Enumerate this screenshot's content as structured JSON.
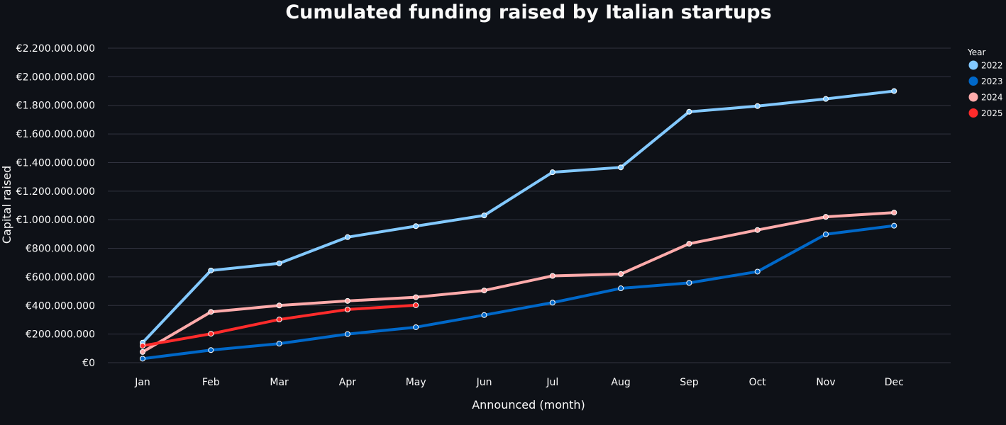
{
  "chart_data": {
    "type": "line",
    "title": "Cumulated funding raised by Italian startups",
    "xlabel": "Announced (month)",
    "ylabel": "Capital raised",
    "categories": [
      "Jan",
      "Feb",
      "Mar",
      "Apr",
      "May",
      "Jun",
      "Jul",
      "Aug",
      "Sep",
      "Oct",
      "Nov",
      "Dec"
    ],
    "ylim": [
      0,
      2200000000
    ],
    "yticks": [
      0,
      200000000,
      400000000,
      600000000,
      800000000,
      1000000000,
      1200000000,
      1400000000,
      1600000000,
      1800000000,
      2000000000,
      2200000000
    ],
    "ytick_labels": [
      "€0",
      "€200.000.000",
      "€400.000.000",
      "€600.000.000",
      "€800.000.000",
      "€1.000.000.000",
      "€1.200.000.000",
      "€1.400.000.000",
      "€1.600.000.000",
      "€1.800.000.000",
      "€2.000.000.000",
      "€2.200.000.000"
    ],
    "grid": true,
    "legend": {
      "title": "Year",
      "placement": "top-right"
    },
    "series": [
      {
        "name": "2022",
        "color": "#83c9ff",
        "values": [
          140000000,
          645000000,
          695000000,
          878000000,
          955000000,
          1030000000,
          1332000000,
          1366000000,
          1755000000,
          1795000000,
          1845000000,
          1900000000
        ]
      },
      {
        "name": "2023",
        "color": "#0068c9",
        "values": [
          28000000,
          88000000,
          133000000,
          200000000,
          248000000,
          333000000,
          420000000,
          520000000,
          558000000,
          637000000,
          898000000,
          958000000
        ]
      },
      {
        "name": "2024",
        "color": "#ffabab",
        "values": [
          75000000,
          355000000,
          400000000,
          432000000,
          458000000,
          505000000,
          607000000,
          620000000,
          832000000,
          928000000,
          1020000000,
          1050000000
        ]
      },
      {
        "name": "2025",
        "color": "#ff2b2b",
        "values": [
          118000000,
          202000000,
          302000000,
          372000000,
          402000000,
          null,
          null,
          null,
          null,
          null,
          null,
          null
        ]
      }
    ]
  }
}
